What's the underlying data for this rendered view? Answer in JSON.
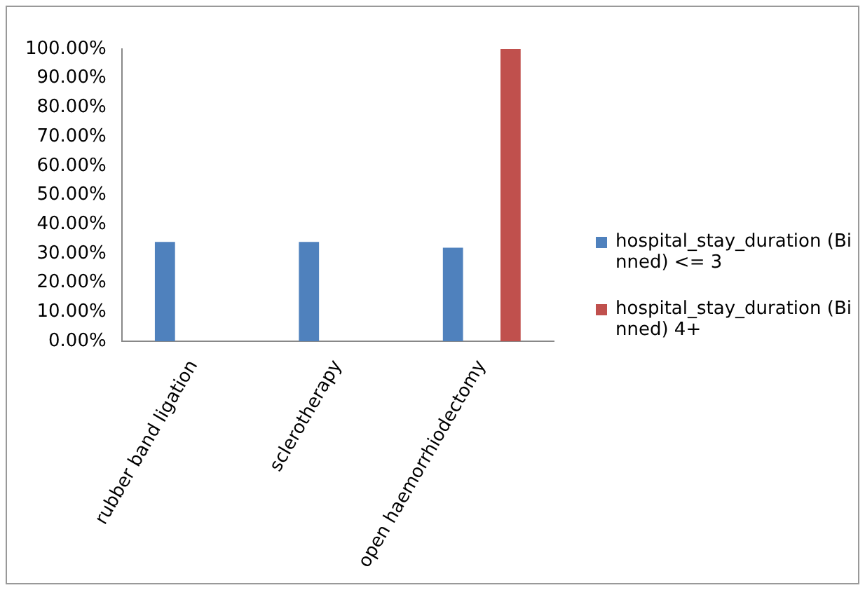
{
  "chart_data": {
    "type": "bar",
    "categories": [
      "rubber band ligation",
      "sclerotherapy",
      "open haemorrhiodectomy"
    ],
    "series": [
      {
        "name": "hospital_stay_duration (Binned) <= 3",
        "color": "#4f81bd",
        "values": [
          34,
          34,
          32
        ]
      },
      {
        "name": "hospital_stay_duration (Binned) 4+",
        "color": "#c0504d",
        "values": [
          0,
          0,
          100
        ]
      }
    ],
    "ylim": [
      0,
      100
    ],
    "yticks": [
      {
        "value": 0,
        "label": "0.00%"
      },
      {
        "value": 10,
        "label": "10.00%"
      },
      {
        "value": 20,
        "label": "20.00%"
      },
      {
        "value": 30,
        "label": "30.00%"
      },
      {
        "value": 40,
        "label": "40.00%"
      },
      {
        "value": 50,
        "label": "50.00%"
      },
      {
        "value": 60,
        "label": "60.00%"
      },
      {
        "value": 70,
        "label": "70.00%"
      },
      {
        "value": 80,
        "label": "80.00%"
      },
      {
        "value": 90,
        "label": "90.00%"
      },
      {
        "value": 100,
        "label": "100.00%"
      }
    ],
    "grid": false,
    "legend": "right"
  }
}
